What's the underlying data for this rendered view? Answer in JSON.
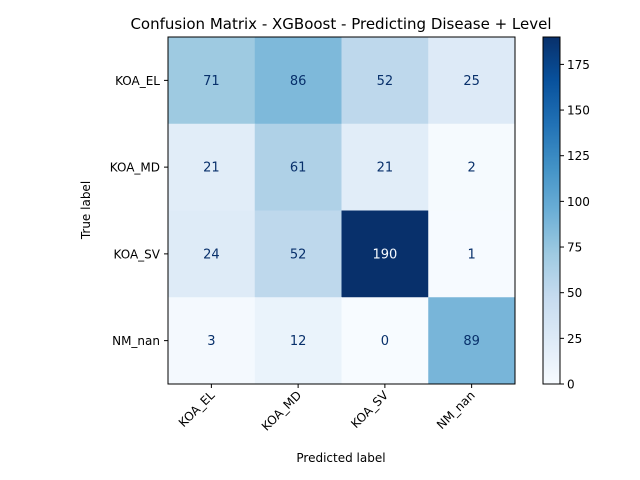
{
  "chart_data": {
    "type": "heatmap",
    "title": "Confusion Matrix - XGBoost - Predicting Disease + Level",
    "xlabel": "Predicted label",
    "ylabel": "True label",
    "x_categories": [
      "KOA_EL",
      "KOA_MD",
      "KOA_SV",
      "NM_nan"
    ],
    "y_categories": [
      "KOA_EL",
      "KOA_MD",
      "KOA_SV",
      "NM_nan"
    ],
    "matrix": [
      [
        71,
        86,
        52,
        25
      ],
      [
        21,
        61,
        21,
        2
      ],
      [
        24,
        52,
        190,
        1
      ],
      [
        3,
        12,
        0,
        89
      ]
    ],
    "colormap": "Blues",
    "value_range": [
      0,
      190
    ],
    "colorbar_ticks": [
      0,
      25,
      50,
      75,
      100,
      125,
      150,
      175
    ],
    "grid": false
  }
}
